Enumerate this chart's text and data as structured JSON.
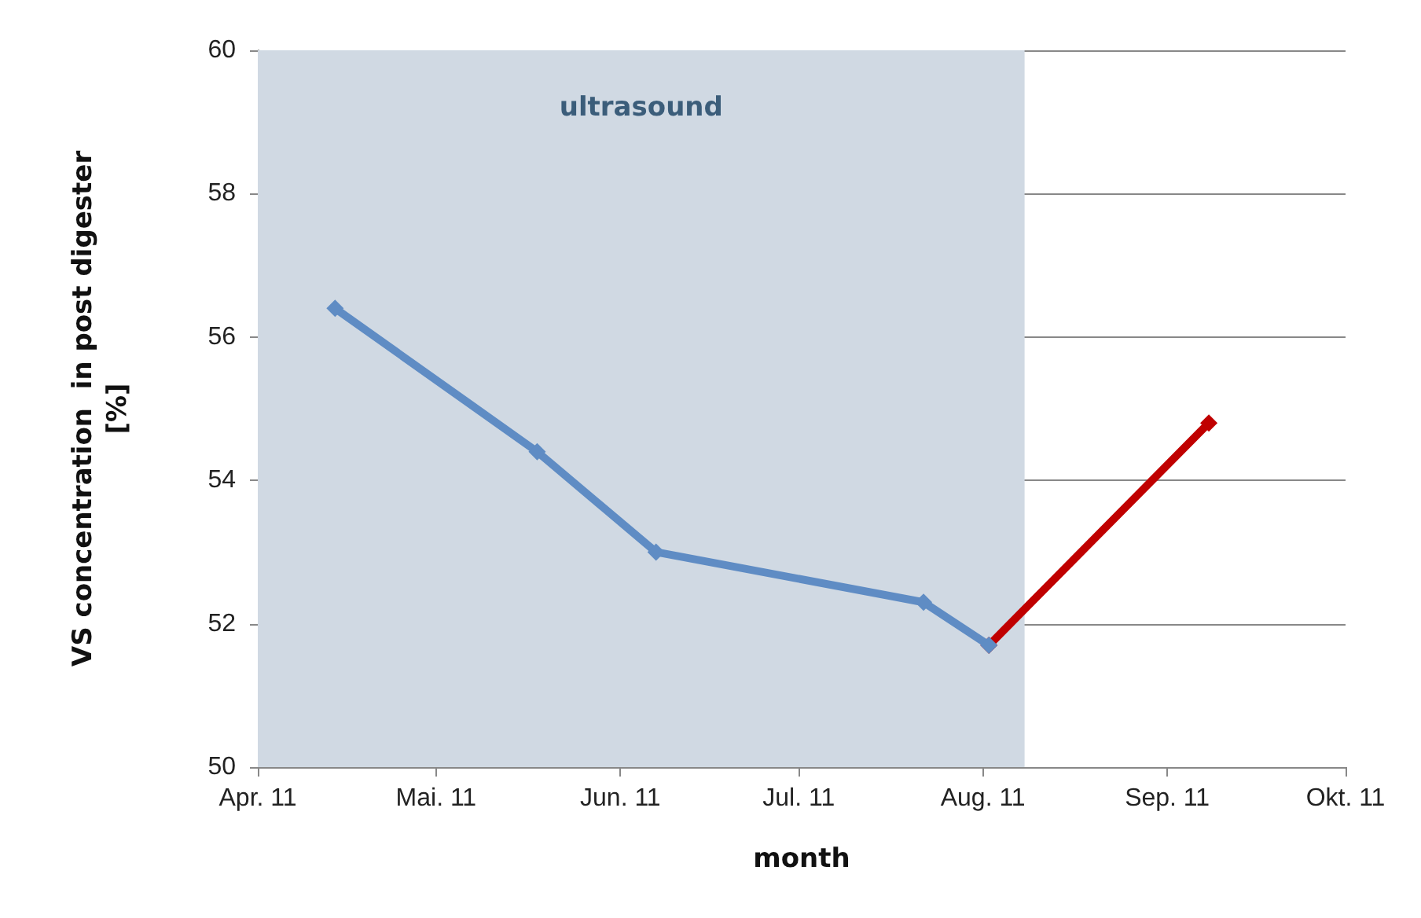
{
  "chart_data": {
    "type": "line",
    "xlabel": "month",
    "ylabel": "VS concentration  in post digester\n[%]",
    "series": [
      {
        "color": "#5f8cc4",
        "x": [
          "2011-04-14",
          "2011-05-18",
          "2011-06-07",
          "2011-07-22",
          "2011-08-02"
        ],
        "values": [
          56.4,
          54.4,
          53.0,
          52.3,
          51.7
        ]
      },
      {
        "color": "#c00000",
        "x": [
          "2011-08-02",
          "2011-09-08"
        ],
        "values": [
          51.7,
          54.8
        ]
      }
    ],
    "xlim": [
      "2011-04-01",
      "2011-10-01"
    ],
    "xticks": [
      {
        "value": "2011-04-01",
        "label": "Apr. 11"
      },
      {
        "value": "2011-05-01",
        "label": "Mai. 11"
      },
      {
        "value": "2011-06-01",
        "label": "Jun. 11"
      },
      {
        "value": "2011-07-01",
        "label": "Jul. 11"
      },
      {
        "value": "2011-08-01",
        "label": "Aug. 11"
      },
      {
        "value": "2011-09-01",
        "label": "Sep. 11"
      },
      {
        "value": "2011-10-01",
        "label": "Okt. 11"
      }
    ],
    "ylim": [
      50,
      60
    ],
    "yticks": [
      50,
      52,
      54,
      56,
      58,
      60
    ],
    "bands": [
      {
        "axis": "x",
        "from": "2011-04-01",
        "to": "2011-08-08",
        "label": "ultrasound",
        "color": "#d0d9e3"
      }
    ],
    "grid": "y",
    "marker": "diamond",
    "line_style": "solid"
  }
}
